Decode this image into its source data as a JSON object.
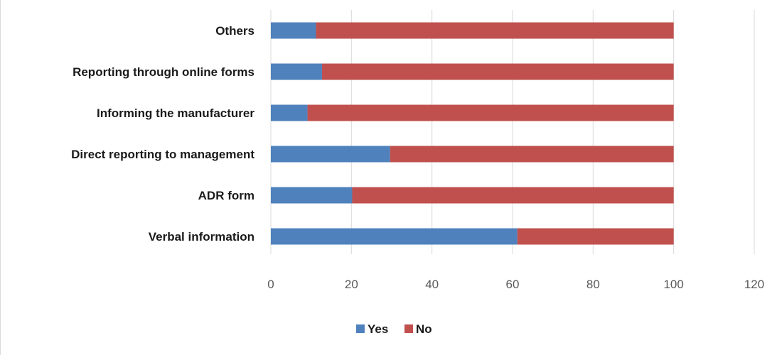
{
  "chart_data": {
    "type": "bar",
    "orientation": "horizontal",
    "stacked": true,
    "categories": [
      "Others",
      "Reporting through online forms",
      "Informing the manufacturer",
      "Direct reporting to management",
      "ADR form",
      "Verbal information"
    ],
    "series": [
      {
        "name": "Yes",
        "color": "#4f81bd",
        "values": [
          11.2,
          12.7,
          9.1,
          29.6,
          20.2,
          61.2
        ]
      },
      {
        "name": "No",
        "color": "#c0504d",
        "values": [
          88.8,
          87.3,
          90.9,
          70.4,
          79.8,
          38.8
        ]
      }
    ],
    "xlim": [
      0,
      120
    ],
    "xticks": [
      "0",
      "20",
      "40",
      "60",
      "80",
      "100",
      "120"
    ],
    "grid": true,
    "legend_position": "bottom"
  }
}
